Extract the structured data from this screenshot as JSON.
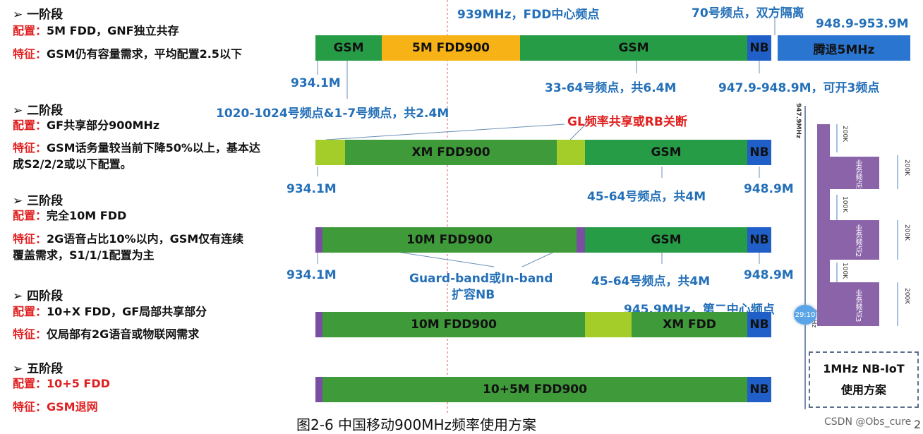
{
  "stages": [
    {
      "title": "➢  一阶段",
      "config_label": "配置：",
      "config": "5M FDD，GNF独立共存",
      "feature_label": "特征：",
      "feature": "GSM仍有容量需求，平均配置2.5以下",
      "feature2": ""
    },
    {
      "title": "➢  二阶段",
      "config_label": "配置：",
      "config": "GF共享部分900MHz",
      "feature_label": "特征：",
      "feature": "GSM话务量较当前下降50%以上，基本达",
      "feature2": "成S2/2/2或以下配置。"
    },
    {
      "title": "➢  三阶段",
      "config_label": "配置：",
      "config": "完全10M FDD",
      "feature_label": "特征：",
      "feature": "2G语音占比10%以内，GSM仅有连续",
      "feature2": "覆盖需求，S1/1/1配置为主"
    },
    {
      "title": "➢   四阶段",
      "config_label": "配置：",
      "config": "10+X FDD，GF局部共享部分",
      "feature_label": "特征：",
      "feature": "仅局部有2G语音或物联网需求",
      "feature2": ""
    },
    {
      "title": "➢  五阶段",
      "config_label": "配置：",
      "config": "10+5 FDD",
      "feature_label": "特征：",
      "feature": "GSM退网",
      "feature2": ""
    }
  ],
  "bars": {
    "row1": [
      "GSM",
      "5M FDD900",
      "GSM",
      "NB",
      "腾退5MHz"
    ],
    "row2": [
      "XM FDD900",
      "GSM",
      "NB"
    ],
    "row3": [
      "10M FDD900",
      "GSM",
      "NB"
    ],
    "row4": [
      "10M FDD900",
      "XM FDD",
      "NB"
    ],
    "row5": [
      "10+5M FDD900",
      "NB"
    ]
  },
  "notes": {
    "center_freq": "939MHz，FDD中心频点",
    "ch70": "70号频点，双方隔离",
    "range_top": "948.9-953.9M",
    "r1_low": "934.1M",
    "r1_ch": "33-64号频点，共6.4M",
    "r1_nb": "947.9-948.9M，可开3频点",
    "r1_extra": "1020-1024号频点&1-7号频点，共2.4M",
    "gl_share": "GL频率共享或RB关断",
    "r2_low": "934.1M",
    "r2_ch": "45-64号频点，共4M",
    "r2_high": "948.9M",
    "r3_low": "934.1M",
    "guard1": "Guard-band或In-band",
    "guard2": "扩容NB",
    "r3_ch": "45-64号频点，共4M",
    "r3_high": "948.9M",
    "second_center": "945.9MHz，第二中心频点"
  },
  "nb_diagram": {
    "top_freq": "947.9MHz",
    "gap_200k": "200K",
    "gap_100k": "100K",
    "block1": "业务频点1",
    "block2": "业务频点2",
    "block3": "业务频点3",
    "bottom_freq": "9__Hz",
    "badge": "29:10",
    "box_line1": "1MHz NB-IoT",
    "box_line2": "使用方案"
  },
  "caption": "图2-6  中国移动900MHz频率使用方案",
  "watermark": "CSDN @Obs_cure",
  "corner": "2",
  "colors": {
    "gsm_green": "#279c47",
    "fdd_orange": "#f7b215",
    "nb_blue": "#1f5fc7",
    "retire_blue": "#2a75d0",
    "xm_green": "#3f9a3a",
    "light_green": "#a5cd2a",
    "purple": "#7a4fa3",
    "note_blue": "#2470b8",
    "note_red": "#e02020"
  }
}
